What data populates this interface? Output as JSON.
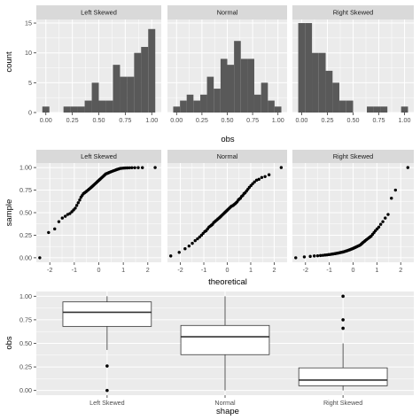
{
  "colors": {
    "panel_background": "#ebebeb",
    "grid_major": "#ffffff",
    "strip_background": "#d9d9d9",
    "bar_fill": "#595959",
    "point_color": "#000000",
    "box_fill": "#ffffff",
    "box_stroke": "#333333"
  },
  "chart_data": [
    {
      "type": "bar",
      "subtype": "faceted-histogram",
      "xlabel": "obs",
      "ylabel": "count",
      "xlim": [
        -0.09,
        1.09
      ],
      "ylim": [
        0,
        15.6
      ],
      "x_ticks": [
        0.0,
        0.25,
        0.5,
        0.75,
        1.0
      ],
      "x_tick_labels": [
        "0.00",
        "0.25",
        "0.50",
        "0.75",
        "1.00"
      ],
      "y_ticks": [
        0,
        5,
        10,
        15
      ],
      "y_tick_labels": [
        "0",
        "5",
        "10",
        "15"
      ],
      "bin_width": 0.0667,
      "grid": true,
      "facets": [
        {
          "name": "Left Skewed",
          "bins": [
            {
              "x": 0.0,
              "count": 1
            },
            {
              "x": 0.067,
              "count": 0
            },
            {
              "x": 0.133,
              "count": 0
            },
            {
              "x": 0.2,
              "count": 1
            },
            {
              "x": 0.267,
              "count": 1
            },
            {
              "x": 0.333,
              "count": 1
            },
            {
              "x": 0.4,
              "count": 2
            },
            {
              "x": 0.467,
              "count": 5
            },
            {
              "x": 0.533,
              "count": 2
            },
            {
              "x": 0.6,
              "count": 2
            },
            {
              "x": 0.667,
              "count": 8
            },
            {
              "x": 0.733,
              "count": 6
            },
            {
              "x": 0.8,
              "count": 6
            },
            {
              "x": 0.867,
              "count": 10
            },
            {
              "x": 0.933,
              "count": 11
            },
            {
              "x": 1.0,
              "count": 14
            }
          ]
        },
        {
          "name": "Normal",
          "bins": [
            {
              "x": 0.0,
              "count": 1
            },
            {
              "x": 0.067,
              "count": 2
            },
            {
              "x": 0.133,
              "count": 3
            },
            {
              "x": 0.2,
              "count": 2
            },
            {
              "x": 0.267,
              "count": 3
            },
            {
              "x": 0.333,
              "count": 6
            },
            {
              "x": 0.4,
              "count": 4
            },
            {
              "x": 0.467,
              "count": 9
            },
            {
              "x": 0.533,
              "count": 8
            },
            {
              "x": 0.6,
              "count": 12
            },
            {
              "x": 0.667,
              "count": 9
            },
            {
              "x": 0.733,
              "count": 9
            },
            {
              "x": 0.8,
              "count": 3
            },
            {
              "x": 0.867,
              "count": 5
            },
            {
              "x": 0.933,
              "count": 2
            },
            {
              "x": 1.0,
              "count": 1
            }
          ]
        },
        {
          "name": "Right Skewed",
          "bins": [
            {
              "x": 0.0,
              "count": 15
            },
            {
              "x": 0.067,
              "count": 15
            },
            {
              "x": 0.133,
              "count": 10
            },
            {
              "x": 0.2,
              "count": 10
            },
            {
              "x": 0.267,
              "count": 7
            },
            {
              "x": 0.333,
              "count": 5
            },
            {
              "x": 0.4,
              "count": 2
            },
            {
              "x": 0.467,
              "count": 2
            },
            {
              "x": 0.533,
              "count": 0
            },
            {
              "x": 0.6,
              "count": 0
            },
            {
              "x": 0.667,
              "count": 1
            },
            {
              "x": 0.733,
              "count": 1
            },
            {
              "x": 0.8,
              "count": 1
            },
            {
              "x": 0.867,
              "count": 0
            },
            {
              "x": 0.933,
              "count": 0
            },
            {
              "x": 1.0,
              "count": 1
            }
          ]
        }
      ]
    },
    {
      "type": "scatter",
      "subtype": "faceted-qq-plot",
      "xlabel": "theoretical",
      "ylabel": "sample",
      "xlim": [
        -2.55,
        2.55
      ],
      "ylim": [
        -0.05,
        1.05
      ],
      "x_ticks": [
        -2,
        -1,
        0,
        1,
        2
      ],
      "x_tick_labels": [
        "-2",
        "-1",
        "0",
        "1",
        "2"
      ],
      "y_ticks": [
        0.0,
        0.25,
        0.5,
        0.75,
        1.0
      ],
      "y_tick_labels": [
        "0.00",
        "0.25",
        "0.50",
        "0.75",
        "1.00"
      ],
      "grid": true,
      "facets": [
        {
          "name": "Left Skewed",
          "points": [
            [
              -2.41,
              0.0
            ],
            [
              -2.05,
              0.28
            ],
            [
              -1.8,
              0.32
            ],
            [
              -1.63,
              0.4
            ],
            [
              -1.49,
              0.44
            ],
            [
              -1.37,
              0.46
            ],
            [
              -1.27,
              0.48
            ],
            [
              -1.18,
              0.49
            ],
            [
              -1.1,
              0.51
            ],
            [
              -1.03,
              0.53
            ],
            [
              -0.96,
              0.55
            ],
            [
              -0.9,
              0.58
            ],
            [
              -0.84,
              0.61
            ],
            [
              -0.78,
              0.64
            ],
            [
              -0.73,
              0.67
            ],
            [
              -0.68,
              0.69
            ],
            [
              -0.63,
              0.71
            ],
            [
              -0.58,
              0.72
            ],
            [
              -0.53,
              0.73
            ],
            [
              -0.49,
              0.74
            ],
            [
              -0.44,
              0.75
            ],
            [
              -0.4,
              0.76
            ],
            [
              -0.35,
              0.77
            ],
            [
              -0.31,
              0.78
            ],
            [
              -0.27,
              0.79
            ],
            [
              -0.23,
              0.8
            ],
            [
              -0.19,
              0.81
            ],
            [
              -0.15,
              0.82
            ],
            [
              -0.11,
              0.83
            ],
            [
              -0.07,
              0.84
            ],
            [
              -0.03,
              0.85
            ],
            [
              0.01,
              0.86
            ],
            [
              0.05,
              0.87
            ],
            [
              0.09,
              0.88
            ],
            [
              0.13,
              0.89
            ],
            [
              0.17,
              0.9
            ],
            [
              0.21,
              0.91
            ],
            [
              0.25,
              0.92
            ],
            [
              0.29,
              0.93
            ],
            [
              0.34,
              0.935
            ],
            [
              0.38,
              0.94
            ],
            [
              0.42,
              0.945
            ],
            [
              0.47,
              0.95
            ],
            [
              0.51,
              0.955
            ],
            [
              0.56,
              0.96
            ],
            [
              0.61,
              0.965
            ],
            [
              0.66,
              0.97
            ],
            [
              0.71,
              0.975
            ],
            [
              0.76,
              0.98
            ],
            [
              0.82,
              0.985
            ],
            [
              0.88,
              0.99
            ],
            [
              0.94,
              0.992
            ],
            [
              1.01,
              0.994
            ],
            [
              1.08,
              0.995
            ],
            [
              1.16,
              0.996
            ],
            [
              1.25,
              0.997
            ],
            [
              1.35,
              0.998
            ],
            [
              1.47,
              0.998
            ],
            [
              1.61,
              0.999
            ],
            [
              1.78,
              0.999
            ],
            [
              2.3,
              1.0
            ]
          ]
        },
        {
          "name": "Normal",
          "points": [
            [
              -2.41,
              0.02
            ],
            [
              -2.05,
              0.06
            ],
            [
              -1.8,
              0.1
            ],
            [
              -1.63,
              0.13
            ],
            [
              -1.49,
              0.16
            ],
            [
              -1.37,
              0.19
            ],
            [
              -1.27,
              0.21
            ],
            [
              -1.18,
              0.23
            ],
            [
              -1.1,
              0.25
            ],
            [
              -1.03,
              0.27
            ],
            [
              -0.96,
              0.29
            ],
            [
              -0.9,
              0.3
            ],
            [
              -0.84,
              0.32
            ],
            [
              -0.78,
              0.34
            ],
            [
              -0.73,
              0.35
            ],
            [
              -0.68,
              0.36
            ],
            [
              -0.63,
              0.37
            ],
            [
              -0.58,
              0.39
            ],
            [
              -0.53,
              0.4
            ],
            [
              -0.49,
              0.41
            ],
            [
              -0.44,
              0.42
            ],
            [
              -0.4,
              0.43
            ],
            [
              -0.35,
              0.44
            ],
            [
              -0.31,
              0.45
            ],
            [
              -0.27,
              0.46
            ],
            [
              -0.23,
              0.47
            ],
            [
              -0.19,
              0.48
            ],
            [
              -0.15,
              0.49
            ],
            [
              -0.11,
              0.5
            ],
            [
              -0.07,
              0.51
            ],
            [
              -0.03,
              0.52
            ],
            [
              0.01,
              0.53
            ],
            [
              0.05,
              0.54
            ],
            [
              0.09,
              0.55
            ],
            [
              0.13,
              0.56
            ],
            [
              0.17,
              0.57
            ],
            [
              0.21,
              0.575
            ],
            [
              0.25,
              0.58
            ],
            [
              0.29,
              0.59
            ],
            [
              0.34,
              0.6
            ],
            [
              0.38,
              0.61
            ],
            [
              0.42,
              0.62
            ],
            [
              0.47,
              0.64
            ],
            [
              0.51,
              0.65
            ],
            [
              0.56,
              0.66
            ],
            [
              0.61,
              0.68
            ],
            [
              0.66,
              0.69
            ],
            [
              0.71,
              0.71
            ],
            [
              0.76,
              0.72
            ],
            [
              0.82,
              0.74
            ],
            [
              0.88,
              0.76
            ],
            [
              0.94,
              0.78
            ],
            [
              1.01,
              0.8
            ],
            [
              1.08,
              0.82
            ],
            [
              1.16,
              0.84
            ],
            [
              1.25,
              0.86
            ],
            [
              1.35,
              0.87
            ],
            [
              1.47,
              0.89
            ],
            [
              1.61,
              0.9
            ],
            [
              1.78,
              0.92
            ],
            [
              2.3,
              1.0
            ]
          ]
        },
        {
          "name": "Right Skewed",
          "points": [
            [
              -2.41,
              0.0
            ],
            [
              -2.05,
              0.01
            ],
            [
              -1.8,
              0.015
            ],
            [
              -1.63,
              0.02
            ],
            [
              -1.49,
              0.022
            ],
            [
              -1.37,
              0.025
            ],
            [
              -1.27,
              0.027
            ],
            [
              -1.18,
              0.03
            ],
            [
              -1.1,
              0.032
            ],
            [
              -1.03,
              0.035
            ],
            [
              -0.96,
              0.037
            ],
            [
              -0.9,
              0.04
            ],
            [
              -0.84,
              0.042
            ],
            [
              -0.78,
              0.045
            ],
            [
              -0.73,
              0.047
            ],
            [
              -0.68,
              0.05
            ],
            [
              -0.63,
              0.052
            ],
            [
              -0.58,
              0.055
            ],
            [
              -0.53,
              0.058
            ],
            [
              -0.49,
              0.06
            ],
            [
              -0.44,
              0.063
            ],
            [
              -0.4,
              0.066
            ],
            [
              -0.35,
              0.07
            ],
            [
              -0.31,
              0.073
            ],
            [
              -0.27,
              0.077
            ],
            [
              -0.23,
              0.08
            ],
            [
              -0.19,
              0.084
            ],
            [
              -0.15,
              0.088
            ],
            [
              -0.11,
              0.092
            ],
            [
              -0.07,
              0.096
            ],
            [
              -0.03,
              0.1
            ],
            [
              0.01,
              0.105
            ],
            [
              0.05,
              0.11
            ],
            [
              0.09,
              0.115
            ],
            [
              0.13,
              0.12
            ],
            [
              0.17,
              0.125
            ],
            [
              0.21,
              0.13
            ],
            [
              0.25,
              0.135
            ],
            [
              0.29,
              0.14
            ],
            [
              0.34,
              0.15
            ],
            [
              0.38,
              0.16
            ],
            [
              0.42,
              0.17
            ],
            [
              0.47,
              0.18
            ],
            [
              0.51,
              0.19
            ],
            [
              0.56,
              0.2
            ],
            [
              0.61,
              0.21
            ],
            [
              0.66,
              0.22
            ],
            [
              0.71,
              0.23
            ],
            [
              0.76,
              0.24
            ],
            [
              0.82,
              0.26
            ],
            [
              0.88,
              0.28
            ],
            [
              0.94,
              0.3
            ],
            [
              1.01,
              0.32
            ],
            [
              1.08,
              0.34
            ],
            [
              1.16,
              0.37
            ],
            [
              1.25,
              0.4
            ],
            [
              1.35,
              0.44
            ],
            [
              1.47,
              0.48
            ],
            [
              1.61,
              0.66
            ],
            [
              1.78,
              0.75
            ],
            [
              2.3,
              1.0
            ]
          ]
        }
      ]
    },
    {
      "type": "box",
      "xlabel": "shape",
      "ylabel": "obs",
      "ylim": [
        -0.05,
        1.05
      ],
      "y_ticks": [
        0.0,
        0.25,
        0.5,
        0.75,
        1.0
      ],
      "y_tick_labels": [
        "0.00",
        "0.25",
        "0.50",
        "0.75",
        "1.00"
      ],
      "categories": [
        "Left Skewed",
        "Normal",
        "Right Skewed"
      ],
      "grid": true,
      "boxes": [
        {
          "name": "Left Skewed",
          "whisker_low": 0.43,
          "q1": 0.68,
          "median": 0.83,
          "q3": 0.94,
          "whisker_high": 1.0,
          "outliers": [
            0.26,
            0.0
          ]
        },
        {
          "name": "Normal",
          "whisker_low": 0.0,
          "q1": 0.38,
          "median": 0.57,
          "q3": 0.69,
          "whisker_high": 1.0,
          "outliers": []
        },
        {
          "name": "Right Skewed",
          "whisker_low": 0.0,
          "q1": 0.05,
          "median": 0.11,
          "q3": 0.24,
          "whisker_high": 0.5,
          "outliers": [
            0.66,
            0.75,
            1.0
          ]
        }
      ]
    }
  ]
}
